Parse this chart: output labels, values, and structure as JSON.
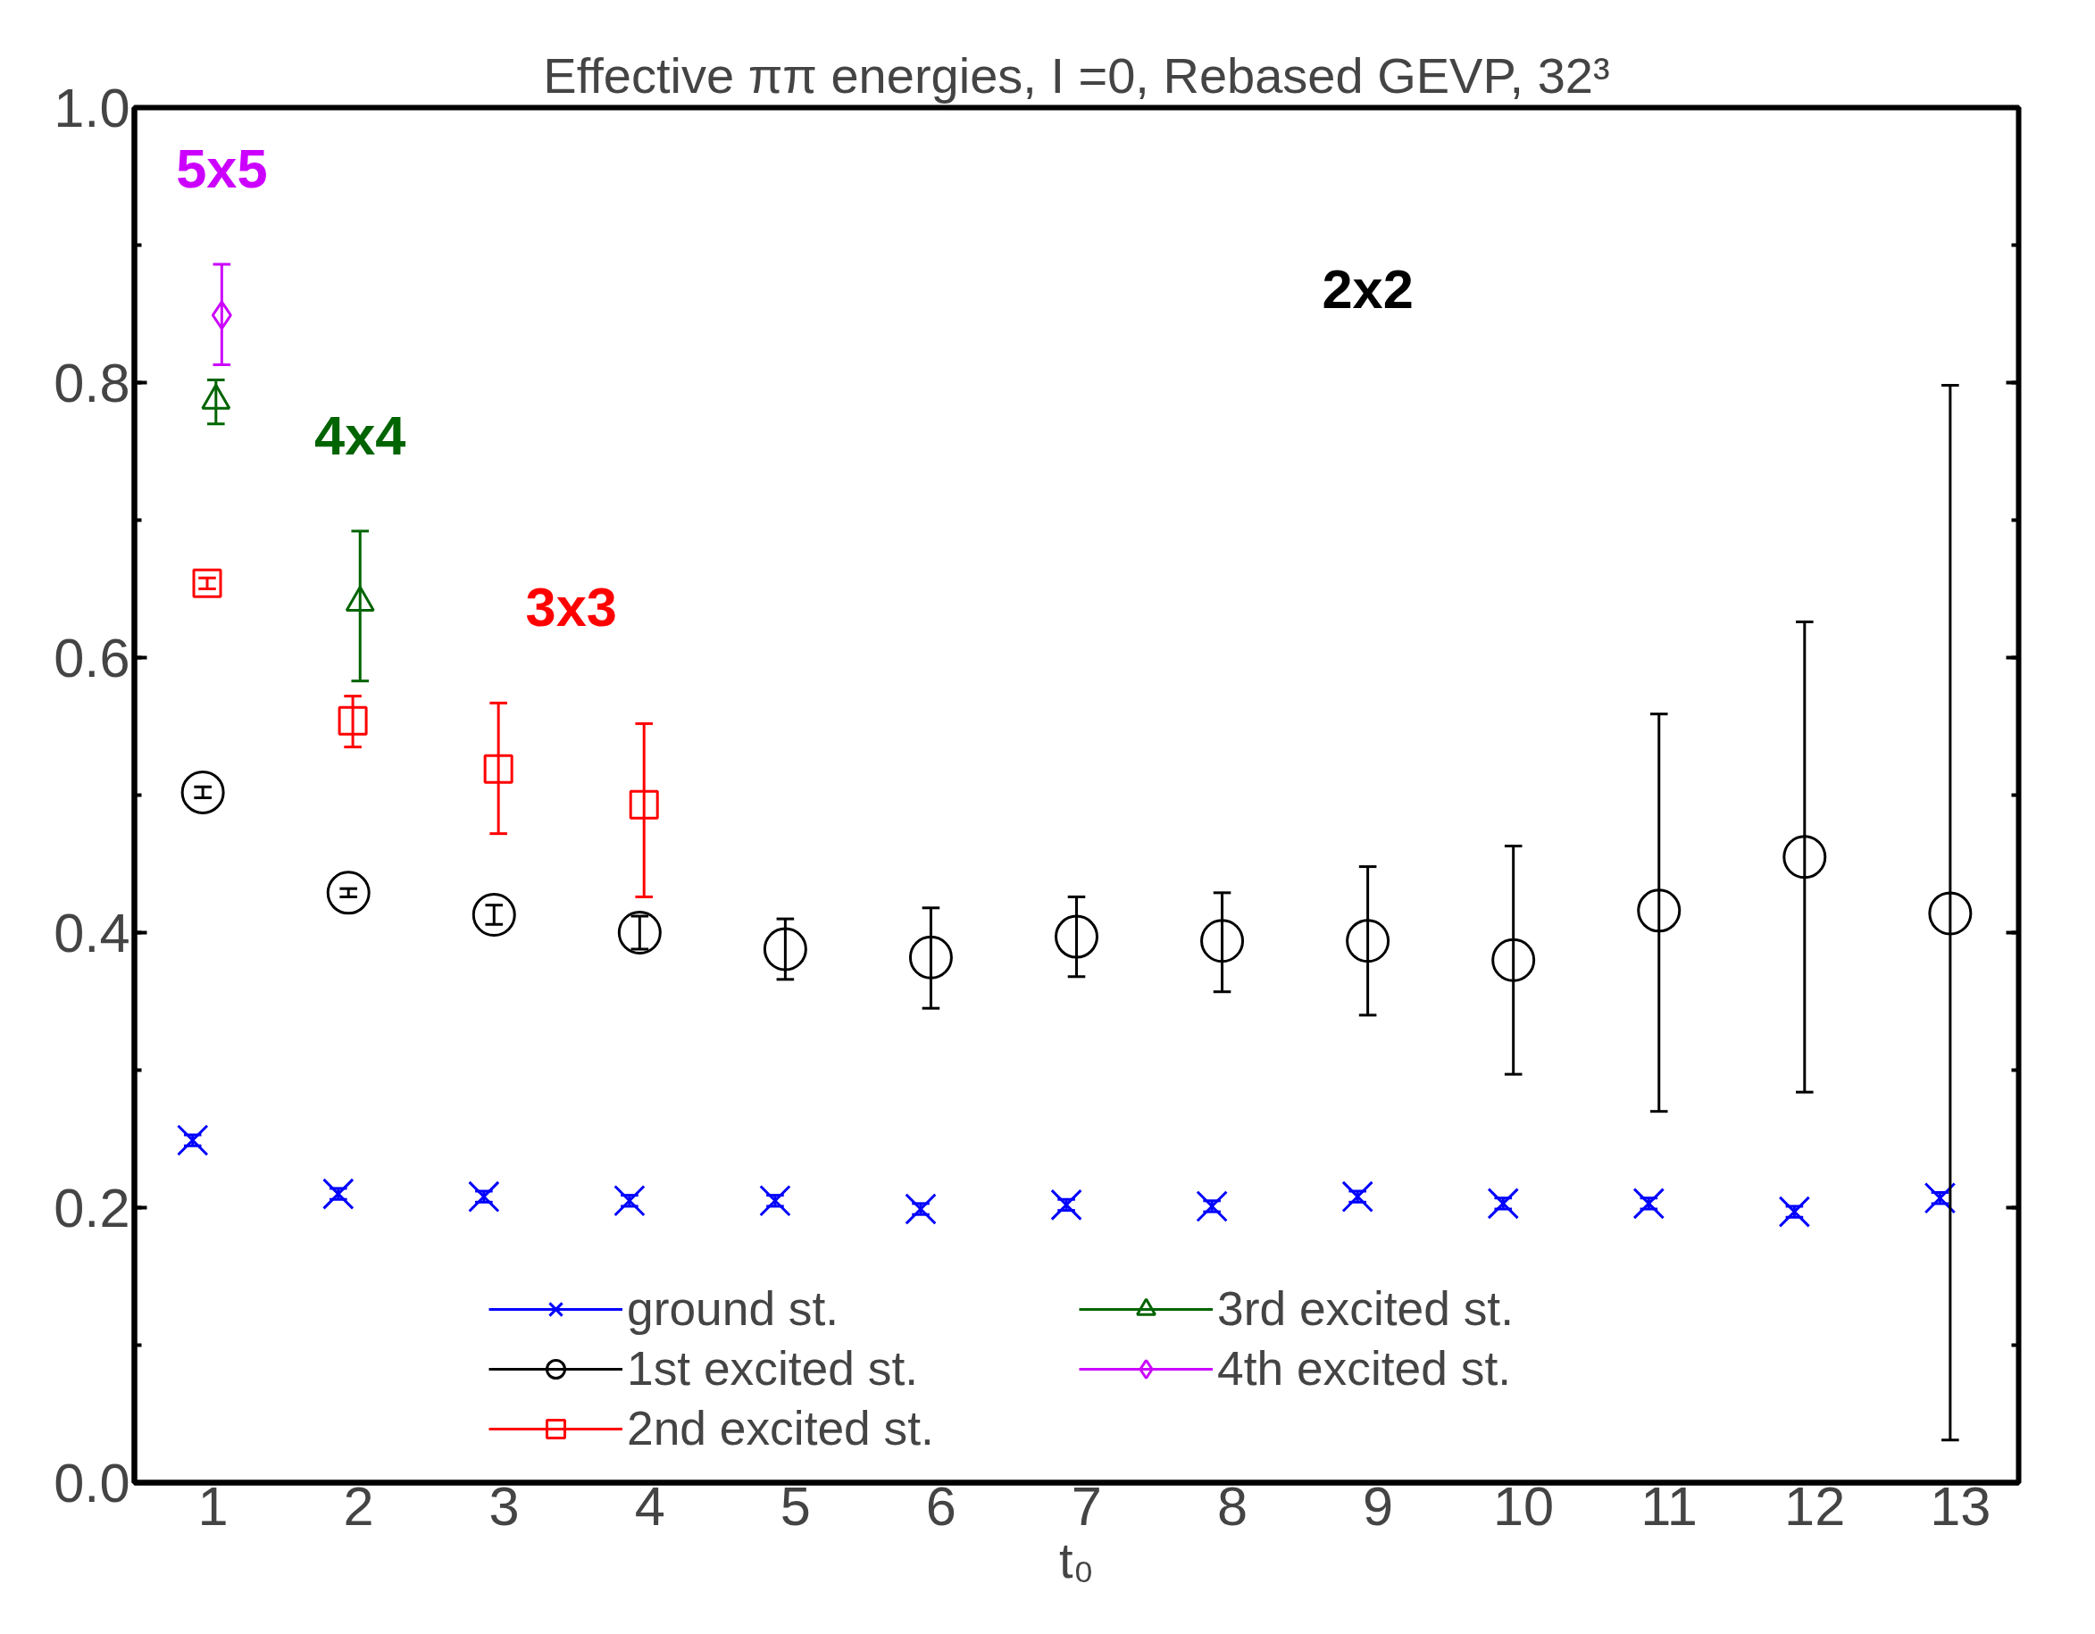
{
  "chart_data": {
    "type": "scatter",
    "title": "Effective ππ energies, I =0, Rebased GEVP, 32³",
    "xlabel": "t₀",
    "xlim": [
      0.46,
      13.4
    ],
    "xticks": [
      1,
      2,
      3,
      4,
      5,
      6,
      7,
      8,
      9,
      10,
      11,
      12,
      13
    ],
    "ylim": [
      0,
      1
    ],
    "yticks": [
      {
        "value": 0,
        "label": "0.0"
      },
      {
        "value": 0.2,
        "label": "0.2"
      },
      {
        "value": 0.4,
        "label": "0.4"
      },
      {
        "value": 0.6,
        "label": "0.6"
      },
      {
        "value": 0.8,
        "label": "0.8"
      },
      {
        "value": 1,
        "label": "1.0"
      }
    ],
    "grid": false,
    "legend": "bottom",
    "series": [
      {
        "name": "ground st.",
        "color": "#0000ff",
        "marker": "cross",
        "x": [
          0.86,
          1.86,
          2.86,
          3.86,
          4.86,
          5.86,
          6.86,
          7.86,
          8.86,
          9.86,
          10.86,
          11.86,
          12.86
        ],
        "values": [
          0.249,
          0.21,
          0.208,
          0.205,
          0.205,
          0.199,
          0.202,
          0.201,
          0.208,
          0.203,
          0.203,
          0.197,
          0.207
        ],
        "errors": [
          0.004,
          0.004,
          0.004,
          0.004,
          0.004,
          0.004,
          0.004,
          0.004,
          0.004,
          0.004,
          0.004,
          0.004,
          0.004
        ]
      },
      {
        "name": "1st excited st.",
        "color": "#000000",
        "marker": "circle",
        "x": [
          0.93,
          1.93,
          2.93,
          3.93,
          4.93,
          5.93,
          6.93,
          7.93,
          8.93,
          9.93,
          10.93,
          11.93,
          12.93
        ],
        "values": [
          0.502,
          0.429,
          0.413,
          0.4,
          0.388,
          0.382,
          0.397,
          0.394,
          0.394,
          0.38,
          0.416,
          0.455,
          0.414
        ],
        "errors": [
          0.004,
          0.003,
          0.007,
          0.012,
          0.022,
          [
            0.345,
            0.418
          ],
          [
            0.368,
            0.426
          ],
          [
            0.357,
            0.429
          ],
          [
            0.34,
            0.448
          ],
          [
            0.297,
            0.463
          ],
          [
            0.27,
            0.559
          ],
          [
            0.284,
            0.626
          ],
          [
            0.031,
            0.798
          ]
        ]
      },
      {
        "name": "2nd excited st.",
        "color": "#ff0000",
        "marker": "square",
        "x": [
          0.96,
          1.96,
          2.96,
          3.96
        ],
        "values": [
          0.654,
          0.554,
          0.519,
          0.493
        ],
        "errors": [
          0.004,
          [
            0.535,
            0.572
          ],
          [
            0.472,
            0.567
          ],
          [
            0.426,
            0.552
          ]
        ]
      },
      {
        "name": "3rd excited st.",
        "color": "#006400",
        "marker": "triangle",
        "x": [
          1.02,
          2.01
        ],
        "values": [
          0.787,
          0.64
        ],
        "errors": [
          [
            0.77,
            0.802
          ],
          [
            0.583,
            0.692
          ]
        ]
      },
      {
        "name": "4th excited st.",
        "color": "#cc00ff",
        "marker": "diamond",
        "x": [
          1.06
        ],
        "values": [
          0.849
        ],
        "errors": [
          [
            0.813,
            0.886
          ]
        ]
      }
    ],
    "annotations": [
      "5x5",
      "4x4",
      "3x3",
      "2x2"
    ]
  }
}
